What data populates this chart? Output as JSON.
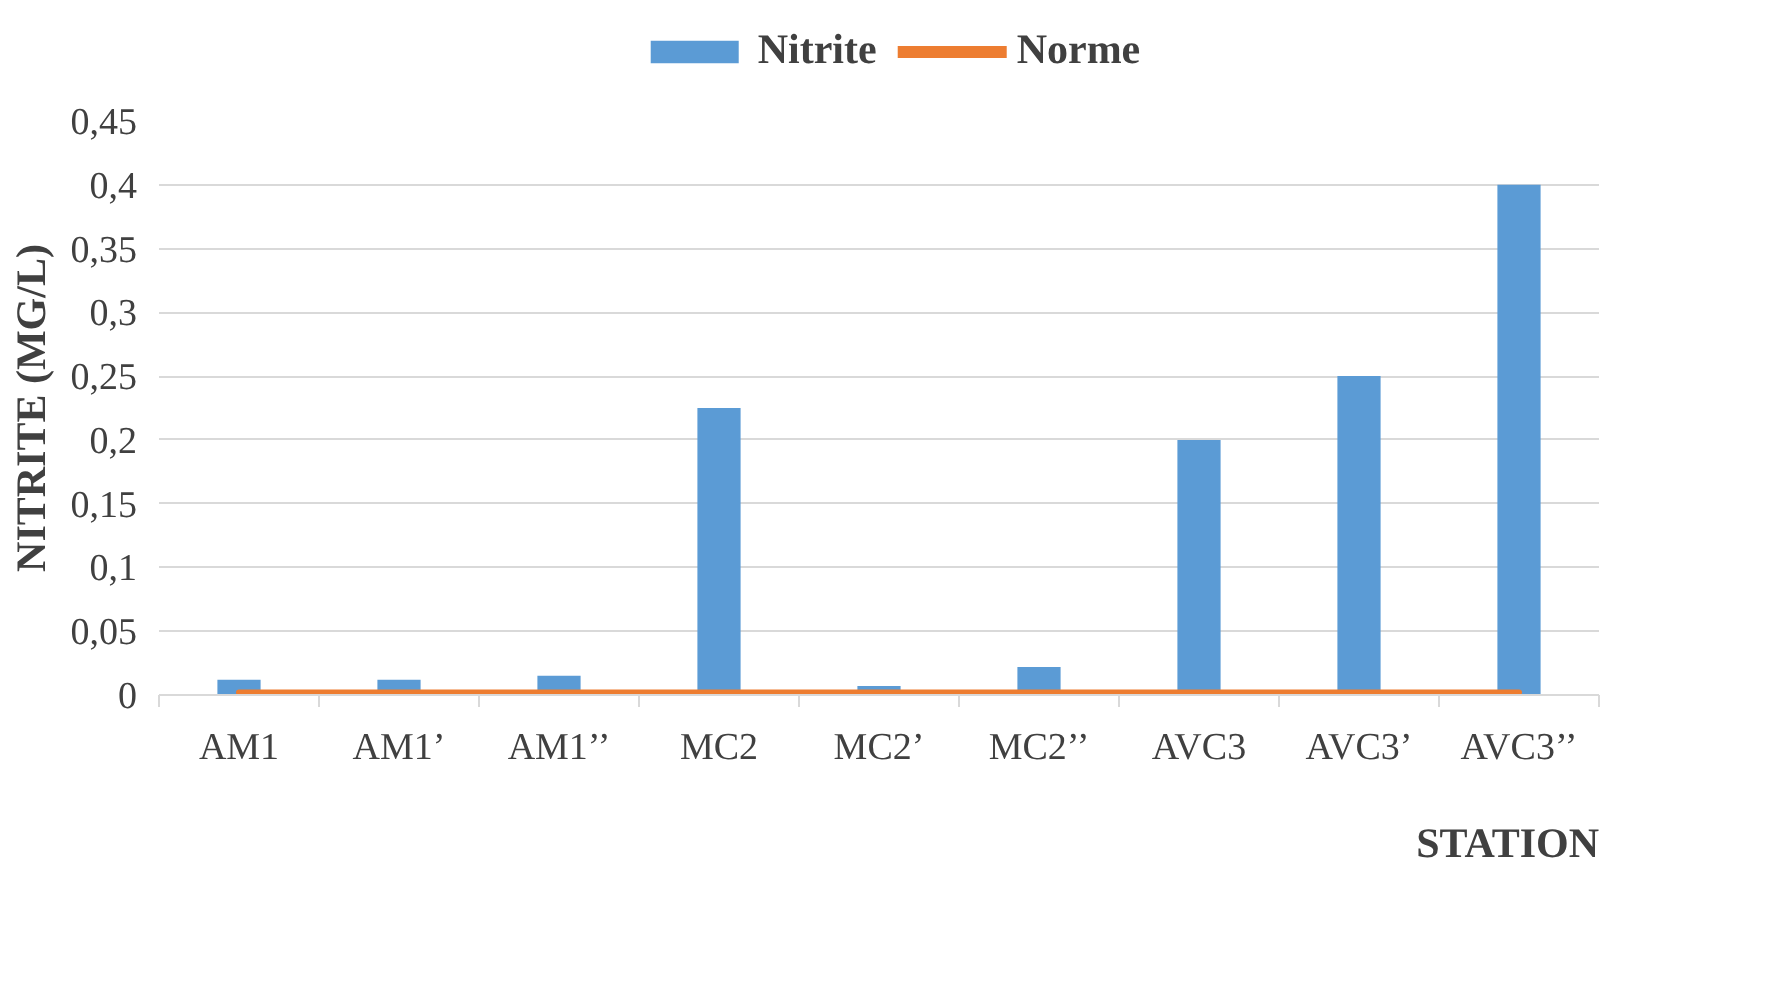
{
  "chart_data": {
    "type": "bar",
    "categories": [
      "AM1",
      "AM1’",
      "AM1’’",
      "MC2",
      "MC2’",
      "MC2’’",
      "AVC3",
      "AVC3’",
      "AVC3’’"
    ],
    "series": [
      {
        "name": "Nitrite",
        "color": "#5b9bd5",
        "values": [
          0.012,
          0.012,
          0.015,
          0.225,
          0.007,
          0.022,
          0.2,
          0.25,
          0.4
        ]
      },
      {
        "name": "Norme",
        "color": "#ed7d31",
        "type": "line",
        "values": [
          0.002,
          0.002,
          0.002,
          0.002,
          0.002,
          0.002,
          0.002,
          0.002,
          0.002
        ]
      }
    ],
    "xlabel": "STATION",
    "ylabel": "NITRITE (MG/L)",
    "ylim": [
      0,
      0.45
    ],
    "yticks": [
      {
        "value": 0,
        "label": "0"
      },
      {
        "value": 0.05,
        "label": "0,05"
      },
      {
        "value": 0.1,
        "label": "0,1"
      },
      {
        "value": 0.15,
        "label": "0,15"
      },
      {
        "value": 0.2,
        "label": "0,2"
      },
      {
        "value": 0.25,
        "label": "0,25"
      },
      {
        "value": 0.3,
        "label": "0,3"
      },
      {
        "value": 0.35,
        "label": "0,35"
      },
      {
        "value": 0.4,
        "label": "0,4"
      },
      {
        "value": 0.45,
        "label": "0,45"
      }
    ],
    "grid": "y",
    "legend": "top"
  }
}
